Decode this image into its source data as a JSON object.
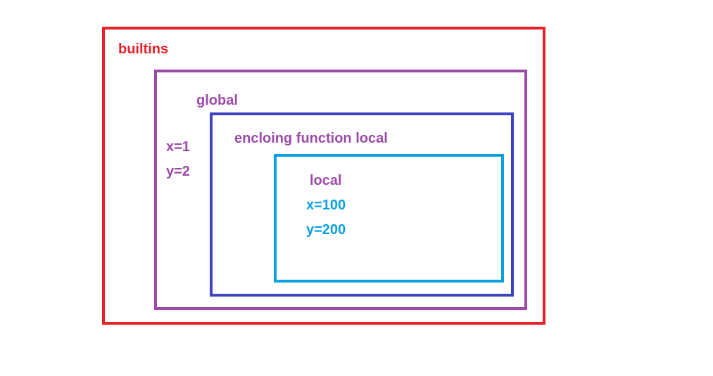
{
  "diagram": {
    "scopes": {
      "builtins": {
        "label": "builtins",
        "color": "#e8202a"
      },
      "global": {
        "label": "global",
        "color": "#9b4aa8",
        "variables": [
          "x=1",
          "y=2"
        ]
      },
      "enclosing": {
        "label": "encloing function local",
        "color": "#3d44c3",
        "label_color": "#9b4aa8"
      },
      "local": {
        "label": "local",
        "color": "#0aa0e2",
        "label_color": "#9b4aa8",
        "variables": [
          "x=100",
          "y=200"
        ]
      }
    }
  }
}
